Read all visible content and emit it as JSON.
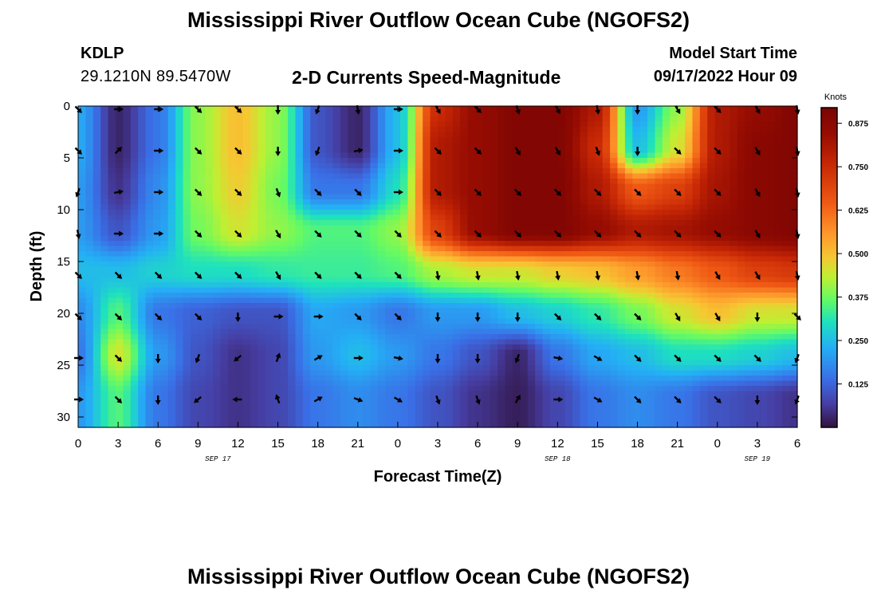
{
  "header": {
    "title": "Mississippi River Outflow Ocean Cube (NGOFS2)",
    "station": "KDLP",
    "coordinates": "29.1210N  89.5470W",
    "plot_title": "2-D Currents Speed-Magnitude",
    "model_start_label": "Model Start Time",
    "model_start_value": "09/17/2022 Hour 09"
  },
  "footer": {
    "title": "Mississippi River Outflow Ocean Cube (NGOFS2)"
  },
  "chart_data": {
    "type": "heatmap",
    "title": "2-D Currents Speed-Magnitude",
    "xlabel": "Forecast Time(Z)",
    "ylabel": "Depth (ft)",
    "x_tick_labels": [
      "0",
      "3",
      "6",
      "9",
      "12",
      "15",
      "18",
      "21",
      "0",
      "3",
      "6",
      "9",
      "12",
      "15",
      "18",
      "21",
      "0",
      "3",
      "6"
    ],
    "x_date_labels": [
      {
        "label": "SEP 17",
        "at_tick": 3.5
      },
      {
        "label": "SEP 18",
        "at_tick": 12
      },
      {
        "label": "SEP 19",
        "at_tick": 17
      }
    ],
    "y_tick_labels": [
      "0",
      "5",
      "10",
      "15",
      "20",
      "25",
      "30"
    ],
    "ylim": [
      0,
      31
    ],
    "colorbar": {
      "label": "Knots",
      "range": [
        0,
        0.92
      ],
      "ticks": [
        "0.125",
        "0.250",
        "0.375",
        "0.500",
        "0.625",
        "0.750",
        "0.875"
      ],
      "tick_values": [
        0.125,
        0.25,
        0.375,
        0.5,
        0.625,
        0.75,
        0.875
      ]
    },
    "grid": false,
    "depths": [
      0,
      4,
      8,
      12,
      16,
      20,
      24,
      28
    ],
    "times": [
      0,
      3,
      6,
      9,
      12,
      15,
      18,
      21,
      24,
      27,
      30,
      33,
      36,
      39,
      42,
      45,
      48,
      51,
      54
    ],
    "speed": [
      [
        0.22,
        0.03,
        0.15,
        0.4,
        0.5,
        0.4,
        0.1,
        0.03,
        0.25,
        0.75,
        0.85,
        0.9,
        0.9,
        0.8,
        0.2,
        0.4,
        0.8,
        0.85,
        0.9
      ],
      [
        0.22,
        0.03,
        0.15,
        0.4,
        0.5,
        0.4,
        0.1,
        0.03,
        0.25,
        0.8,
        0.85,
        0.9,
        0.9,
        0.75,
        0.25,
        0.45,
        0.8,
        0.88,
        0.9
      ],
      [
        0.2,
        0.05,
        0.18,
        0.4,
        0.48,
        0.38,
        0.15,
        0.15,
        0.3,
        0.8,
        0.85,
        0.9,
        0.9,
        0.8,
        0.65,
        0.7,
        0.82,
        0.88,
        0.9
      ],
      [
        0.2,
        0.1,
        0.2,
        0.38,
        0.45,
        0.4,
        0.35,
        0.35,
        0.4,
        0.7,
        0.85,
        0.9,
        0.9,
        0.85,
        0.8,
        0.82,
        0.85,
        0.88,
        0.9
      ],
      [
        0.25,
        0.25,
        0.28,
        0.3,
        0.3,
        0.32,
        0.33,
        0.33,
        0.35,
        0.42,
        0.45,
        0.45,
        0.48,
        0.5,
        0.55,
        0.6,
        0.65,
        0.7,
        0.72
      ],
      [
        0.18,
        0.35,
        0.15,
        0.12,
        0.1,
        0.1,
        0.22,
        0.2,
        0.15,
        0.2,
        0.2,
        0.25,
        0.28,
        0.32,
        0.38,
        0.45,
        0.5,
        0.45,
        0.45
      ],
      [
        0.15,
        0.45,
        0.2,
        0.1,
        0.05,
        0.08,
        0.2,
        0.25,
        0.2,
        0.15,
        0.1,
        0.03,
        0.15,
        0.22,
        0.25,
        0.3,
        0.3,
        0.28,
        0.25
      ],
      [
        0.2,
        0.35,
        0.15,
        0.08,
        0.05,
        0.08,
        0.15,
        0.18,
        0.15,
        0.1,
        0.05,
        0.02,
        0.08,
        0.15,
        0.18,
        0.15,
        0.1,
        0.08,
        0.05
      ]
    ],
    "direction_deg": [
      [
        135,
        90,
        90,
        135,
        135,
        180,
        200,
        170,
        90,
        150,
        135,
        160,
        150,
        170,
        180,
        150,
        135,
        150,
        170
      ],
      [
        135,
        45,
        90,
        135,
        135,
        180,
        200,
        80,
        90,
        135,
        135,
        150,
        150,
        160,
        180,
        135,
        135,
        150,
        170
      ],
      [
        200,
        80,
        90,
        135,
        135,
        160,
        135,
        135,
        90,
        135,
        135,
        135,
        135,
        135,
        135,
        135,
        135,
        150,
        170
      ],
      [
        170,
        90,
        90,
        135,
        135,
        150,
        135,
        135,
        135,
        135,
        135,
        135,
        135,
        135,
        135,
        135,
        135,
        150,
        170
      ],
      [
        135,
        135,
        135,
        135,
        135,
        150,
        135,
        135,
        135,
        170,
        170,
        170,
        170,
        170,
        170,
        170,
        150,
        150,
        170
      ],
      [
        135,
        135,
        135,
        135,
        180,
        90,
        90,
        135,
        135,
        180,
        180,
        180,
        135,
        135,
        135,
        150,
        150,
        180,
        135
      ],
      [
        90,
        135,
        180,
        200,
        230,
        20,
        60,
        90,
        100,
        180,
        180,
        200,
        100,
        120,
        135,
        135,
        135,
        135,
        200
      ],
      [
        90,
        135,
        180,
        230,
        270,
        340,
        60,
        110,
        120,
        160,
        160,
        30,
        90,
        120,
        135,
        135,
        135,
        180,
        200
      ]
    ]
  }
}
